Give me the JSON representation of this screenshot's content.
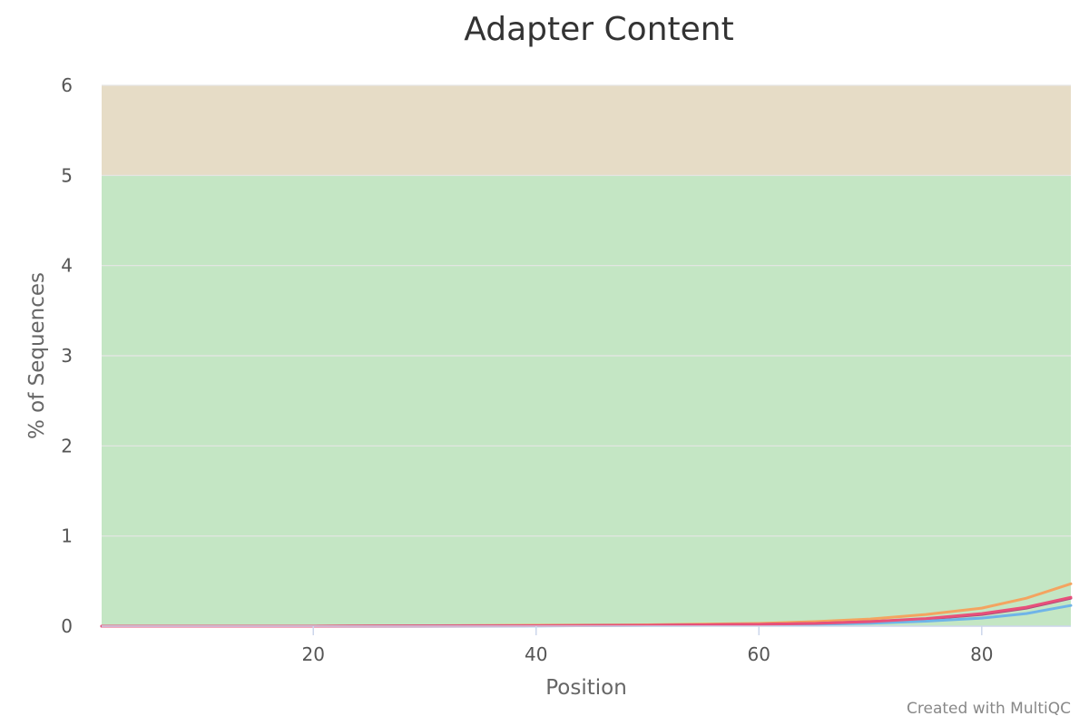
{
  "chart_data": {
    "type": "line",
    "title": "Adapter Content",
    "xlabel": "Position",
    "ylabel": "% of Sequences",
    "xlim": [
      1,
      88
    ],
    "ylim": [
      0,
      6
    ],
    "xticks": [
      20,
      40,
      60,
      80
    ],
    "yticks": [
      0,
      1,
      2,
      3,
      4,
      5,
      6
    ],
    "grid": true,
    "legend": "none",
    "bands": [
      {
        "from": 0,
        "to": 5,
        "color": "#c4e6c4"
      },
      {
        "from": 5,
        "to": 6,
        "color": "#e6dcc6"
      }
    ],
    "series": [
      {
        "color": "#f4a460",
        "x": [
          1,
          20,
          40,
          50,
          60,
          65,
          70,
          75,
          80,
          84,
          88
        ],
        "y": [
          0.0,
          0.0,
          0.01,
          0.015,
          0.03,
          0.05,
          0.08,
          0.13,
          0.2,
          0.31,
          0.47
        ]
      },
      {
        "color": "#b04a7a",
        "x": [
          1,
          20,
          40,
          50,
          60,
          65,
          70,
          75,
          80,
          84,
          88
        ],
        "y": [
          0.0,
          0.0,
          0.005,
          0.01,
          0.02,
          0.03,
          0.05,
          0.08,
          0.13,
          0.2,
          0.31
        ]
      },
      {
        "color": "#6fb4e8",
        "x": [
          1,
          20,
          40,
          50,
          60,
          65,
          70,
          75,
          80,
          84,
          88
        ],
        "y": [
          0.0,
          0.0,
          0.003,
          0.007,
          0.012,
          0.02,
          0.033,
          0.055,
          0.09,
          0.14,
          0.23
        ]
      },
      {
        "color": "#e8507a",
        "x": [
          1,
          20,
          40,
          50,
          60,
          65,
          70,
          75,
          80,
          84,
          88
        ],
        "y": [
          0.0,
          0.0,
          0.005,
          0.01,
          0.02,
          0.03,
          0.05,
          0.085,
          0.14,
          0.21,
          0.32
        ]
      }
    ]
  },
  "credit": "Created with MultiQC"
}
